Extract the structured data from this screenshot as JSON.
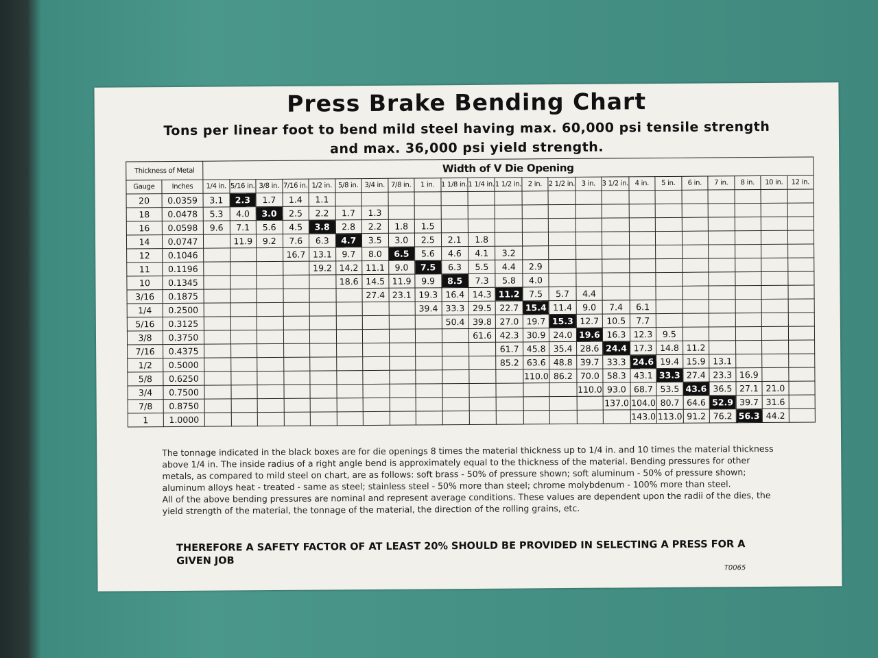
{
  "header": {
    "title": "Press Brake Bending Chart",
    "subtitle": "Tons per linear foot to bend mild steel having max. 60,000 psi tensile strength and max. 36,000 psi yield strength."
  },
  "table": {
    "thickness_header": "Thickness of Metal",
    "gauge_header": "Gauge",
    "inches_header": "Inches",
    "die_header": "Width of V Die Opening",
    "columns": [
      "1/4 in.",
      "5/16 in.",
      "3/8 in.",
      "7/16 in.",
      "1/2 in.",
      "5/8 in.",
      "3/4 in.",
      "7/8 in.",
      "1 in.",
      "1 1/8 in.",
      "1 1/4 in.",
      "1 1/2 in.",
      "2 in.",
      "2 1/2 in.",
      "3 in.",
      "3 1/2 in.",
      "4 in.",
      "5 in.",
      "6 in.",
      "7 in.",
      "8 in.",
      "10 in.",
      "12 in."
    ],
    "rows": [
      {
        "gauge": "20",
        "inches": "0.0359",
        "start": 0,
        "boxed": 1,
        "values": [
          "3.1",
          "2.3",
          "1.7",
          "1.4",
          "1.1"
        ]
      },
      {
        "gauge": "18",
        "inches": "0.0478",
        "start": 0,
        "boxed": 2,
        "values": [
          "5.3",
          "4.0",
          "3.0",
          "2.5",
          "2.2",
          "1.7",
          "1.3"
        ]
      },
      {
        "gauge": "16",
        "inches": "0.0598",
        "start": 0,
        "boxed": 4,
        "values": [
          "9.6",
          "7.1",
          "5.6",
          "4.5",
          "3.8",
          "2.8",
          "2.2",
          "1.8",
          "1.5"
        ]
      },
      {
        "gauge": "14",
        "inches": "0.0747",
        "start": 1,
        "boxed": 5,
        "values": [
          "11.9",
          "9.2",
          "7.6",
          "6.3",
          "4.7",
          "3.5",
          "3.0",
          "2.5",
          "2.1",
          "1.8"
        ]
      },
      {
        "gauge": "12",
        "inches": "0.1046",
        "start": 3,
        "boxed": 7,
        "values": [
          "16.7",
          "13.1",
          "9.7",
          "8.0",
          "6.5",
          "5.6",
          "4.6",
          "4.1",
          "3.2"
        ]
      },
      {
        "gauge": "11",
        "inches": "0.1196",
        "start": 4,
        "boxed": 8,
        "values": [
          "19.2",
          "14.2",
          "11.1",
          "9.0",
          "7.5",
          "6.3",
          "5.5",
          "4.4",
          "2.9"
        ]
      },
      {
        "gauge": "10",
        "inches": "0.1345",
        "start": 5,
        "boxed": 9,
        "values": [
          "18.6",
          "14.5",
          "11.9",
          "9.9",
          "8.5",
          "7.3",
          "5.8",
          "4.0"
        ]
      },
      {
        "gauge": "3/16",
        "inches": "0.1875",
        "start": 6,
        "boxed": 11,
        "values": [
          "27.4",
          "23.1",
          "19.3",
          "16.4",
          "14.3",
          "11.2",
          "7.5",
          "5.7",
          "4.4"
        ]
      },
      {
        "gauge": "1/4",
        "inches": "0.2500",
        "start": 8,
        "boxed": 12,
        "values": [
          "39.4",
          "33.3",
          "29.5",
          "22.7",
          "15.4",
          "11.4",
          "9.0",
          "7.4",
          "6.1"
        ]
      },
      {
        "gauge": "5/16",
        "inches": "0.3125",
        "start": 9,
        "boxed": 13,
        "values": [
          "50.4",
          "39.8",
          "27.0",
          "19.7",
          "15.3",
          "12.7",
          "10.5",
          "7.7"
        ]
      },
      {
        "gauge": "3/8",
        "inches": "0.3750",
        "start": 10,
        "boxed": 14,
        "values": [
          "61.6",
          "42.3",
          "30.9",
          "24.0",
          "19.6",
          "16.3",
          "12.3",
          "9.5"
        ]
      },
      {
        "gauge": "7/16",
        "inches": "0.4375",
        "start": 11,
        "boxed": 15,
        "values": [
          "61.7",
          "45.8",
          "35.4",
          "28.6",
          "24.4",
          "17.3",
          "14.8",
          "11.2"
        ]
      },
      {
        "gauge": "1/2",
        "inches": "0.5000",
        "start": 11,
        "boxed": 16,
        "values": [
          "85.2",
          "63.6",
          "48.8",
          "39.7",
          "33.3",
          "24.6",
          "19.4",
          "15.9",
          "13.1"
        ]
      },
      {
        "gauge": "5/8",
        "inches": "0.6250",
        "start": 12,
        "boxed": 17,
        "values": [
          "110.0",
          "86.2",
          "70.0",
          "58.3",
          "43.1",
          "33.3",
          "27.4",
          "23.3",
          "16.9"
        ]
      },
      {
        "gauge": "3/4",
        "inches": "0.7500",
        "start": 14,
        "boxed": 18,
        "values": [
          "110.0",
          "93.0",
          "68.7",
          "53.5",
          "43.6",
          "36.5",
          "27.1",
          "21.0"
        ]
      },
      {
        "gauge": "7/8",
        "inches": "0.8750",
        "start": 15,
        "boxed": 19,
        "values": [
          "137.0",
          "104.0",
          "80.7",
          "64.6",
          "52.9",
          "39.7",
          "31.6"
        ]
      },
      {
        "gauge": "1",
        "inches": "1.0000",
        "start": 16,
        "boxed": 20,
        "values": [
          "143.0",
          "113.0",
          "91.2",
          "76.2",
          "56.3",
          "44.2"
        ]
      }
    ]
  },
  "notes": {
    "paragraphs": [
      "The tonnage indicated in the black boxes are for die openings 8 times the material thickness up to 1/4 in. and 10 times the material thickness above 1/4 in. The inside radius of a right angle bend is approximately equal to the thickness of the material. Bending pressures for other metals, as compared to mild steel on chart, are as follows: soft brass - 50% of pressure shown; soft aluminum - 50% of pressure shown; aluminum alloys heat - treated - same as steel; stainless steel - 50% more than steel; chrome molybdenum - 100% more than steel.",
      "All of the above bending pressures are nominal and represent average conditions. These values are dependent upon the radii of the dies, the yield strength of the material, the tonnage of the material, the direction of the rolling grains, etc."
    ],
    "warning": "THEREFORE A SAFETY FACTOR OF AT LEAST 20% SHOULD BE PROVIDED IN SELECTING A PRESS FOR A GIVEN JOB",
    "code": "T0065"
  }
}
